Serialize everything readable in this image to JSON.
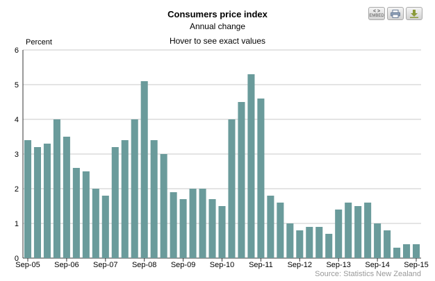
{
  "toolbar": {
    "embed_label": "EMBED",
    "embed_icon": "code-icon",
    "print_icon": "printer-icon",
    "download_icon": "download-icon"
  },
  "chart_data": {
    "type": "bar",
    "title": "Consumers price index",
    "subtitle": "Annual change",
    "hint": "Hover to see exact values",
    "ylabel": "Percent",
    "xlabel": "",
    "ylim": [
      0,
      6
    ],
    "yticks": [
      0,
      1,
      2,
      3,
      4,
      5,
      6
    ],
    "grid": true,
    "bar_color": "#6a9b9b",
    "categories": [
      "Sep-05",
      "Dec-05",
      "Mar-06",
      "Jun-06",
      "Sep-06",
      "Dec-06",
      "Mar-07",
      "Jun-07",
      "Sep-07",
      "Dec-07",
      "Mar-08",
      "Jun-08",
      "Sep-08",
      "Dec-08",
      "Mar-09",
      "Jun-09",
      "Sep-09",
      "Dec-09",
      "Mar-10",
      "Jun-10",
      "Sep-10",
      "Dec-10",
      "Mar-11",
      "Jun-11",
      "Sep-11",
      "Dec-11",
      "Mar-12",
      "Jun-12",
      "Sep-12",
      "Dec-12",
      "Mar-13",
      "Jun-13",
      "Sep-13",
      "Dec-13",
      "Mar-14",
      "Jun-14",
      "Sep-14",
      "Dec-14",
      "Mar-15",
      "Jun-15",
      "Sep-15"
    ],
    "values": [
      3.4,
      3.2,
      3.3,
      4.0,
      3.5,
      2.6,
      2.5,
      2.0,
      1.8,
      3.2,
      3.4,
      4.0,
      5.1,
      3.4,
      3.0,
      1.9,
      1.7,
      2.0,
      2.0,
      1.7,
      1.5,
      4.0,
      4.5,
      5.3,
      4.6,
      1.8,
      1.6,
      1.0,
      0.8,
      0.9,
      0.9,
      0.7,
      1.4,
      1.6,
      1.5,
      1.6,
      1.0,
      0.8,
      0.3,
      0.4,
      0.4
    ],
    "xtick_labels": [
      "Sep-05",
      "Sep-06",
      "Sep-07",
      "Sep-08",
      "Sep-09",
      "Sep-10",
      "Sep-11",
      "Sep-12",
      "Sep-13",
      "Sep-14",
      "Sep-15"
    ],
    "source": "Source: Statistics New Zealand"
  }
}
